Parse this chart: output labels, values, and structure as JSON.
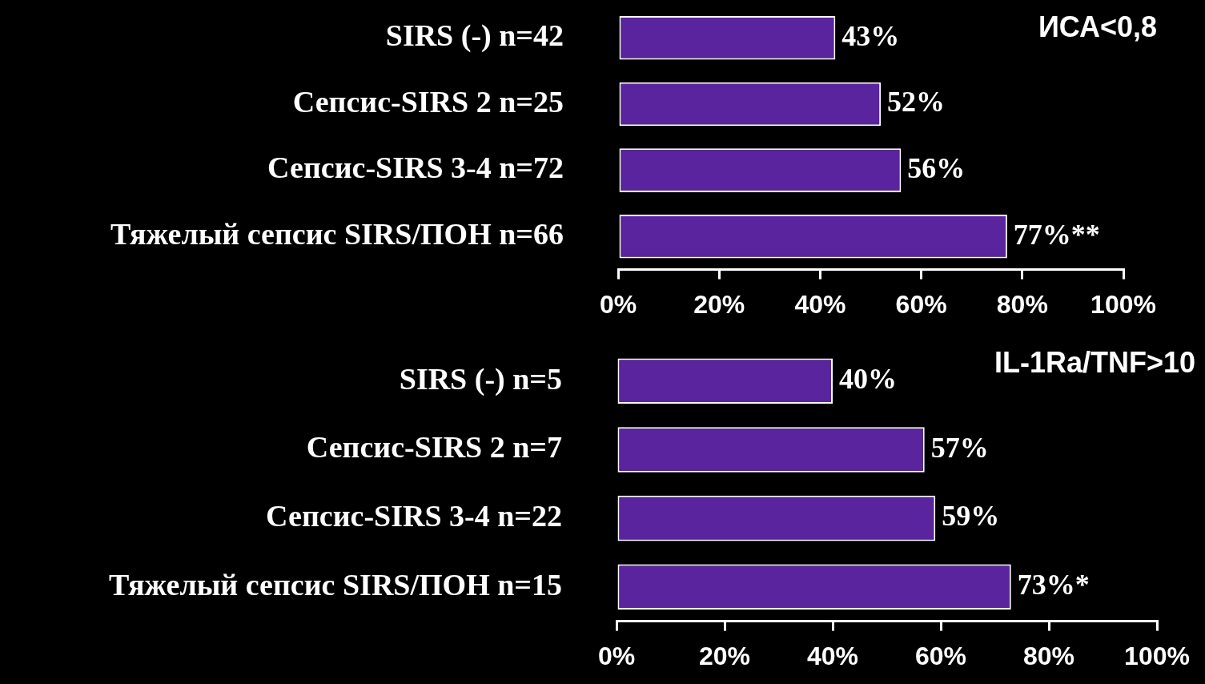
{
  "chart_data": [
    {
      "type": "bar",
      "orientation": "horizontal",
      "title": "ИСА<0,8",
      "categories": [
        "SIRS (-) n=42",
        "Сепсис-SIRS 2 n=25",
        "Сепсис-SIRS 3-4 n=72",
        "Тяжелый сепсис SIRS/ПОН n=66"
      ],
      "values": [
        43,
        52,
        56,
        77
      ],
      "value_labels": [
        "43%",
        "52%",
        "56%",
        "77%**"
      ],
      "color": "#5a249e",
      "xlim": [
        0,
        100
      ],
      "xticks": [
        {
          "value": 0,
          "label": "0%"
        },
        {
          "value": 20,
          "label": "20%"
        },
        {
          "value": 40,
          "label": "40%"
        },
        {
          "value": 60,
          "label": "60%"
        },
        {
          "value": 80,
          "label": "80%"
        },
        {
          "value": 100,
          "label": "100%"
        }
      ],
      "grid": false,
      "legend": false
    },
    {
      "type": "bar",
      "orientation": "horizontal",
      "title": "IL-1Ra/TNF>10",
      "categories": [
        "SIRS (-) n=5",
        "Сепсис-SIRS 2 n=7",
        "Сепсис-SIRS 3-4 n=22",
        "Тяжелый сепсис SIRS/ПОН n=15"
      ],
      "values": [
        40,
        57,
        59,
        73
      ],
      "value_labels": [
        "40%",
        "57%",
        "59%",
        "73%*"
      ],
      "color": "#5a249e",
      "xlim": [
        0,
        100
      ],
      "xticks": [
        {
          "value": 0,
          "label": "0%"
        },
        {
          "value": 20,
          "label": "20%"
        },
        {
          "value": 40,
          "label": "40%"
        },
        {
          "value": 60,
          "label": "60%"
        },
        {
          "value": 80,
          "label": "80%"
        },
        {
          "value": 100,
          "label": "100%"
        }
      ],
      "grid": false,
      "legend": false
    }
  ]
}
